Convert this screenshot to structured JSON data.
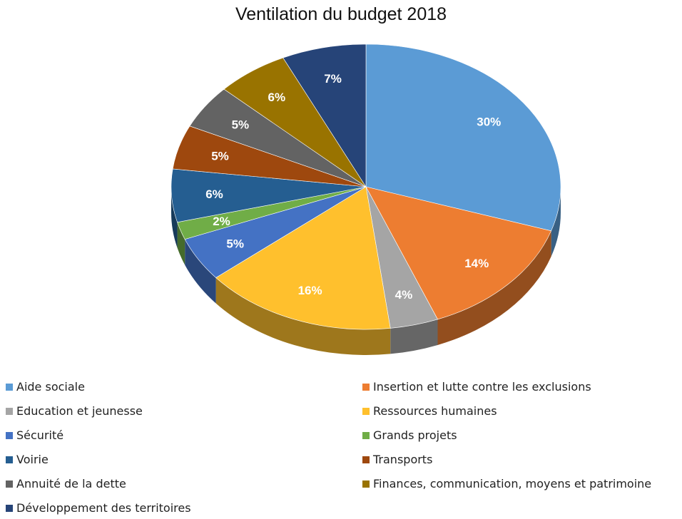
{
  "chart_data": {
    "type": "pie",
    "title": "Ventilation du budget 2018",
    "legend_position": "bottom",
    "slices": [
      {
        "label": "Aide sociale",
        "value": 30,
        "display": "30%",
        "color": "#5B9BD5"
      },
      {
        "label": "Insertion et lutte contre les exclusions",
        "value": 14,
        "display": "14%",
        "color": "#ED7D31"
      },
      {
        "label": "Education et jeunesse",
        "value": 4,
        "display": "4%",
        "color": "#A5A5A5"
      },
      {
        "label": "Ressources humaines",
        "value": 16,
        "display": "16%",
        "color": "#FFC02D"
      },
      {
        "label": "Sécurité",
        "value": 5,
        "display": "5%",
        "color": "#4472C4"
      },
      {
        "label": "Grands projets",
        "value": 2,
        "display": "2%",
        "color": "#70AD47"
      },
      {
        "label": "Voirie",
        "value": 6,
        "display": "6%",
        "color": "#255E91"
      },
      {
        "label": "Transports",
        "value": 5,
        "display": "5%",
        "color": "#9E480E"
      },
      {
        "label": "Annuité de la dette",
        "value": 5,
        "display": "5%",
        "color": "#636363"
      },
      {
        "label": "Finances, communication, moyens et patrimoine",
        "value": 6,
        "display": "6%",
        "color": "#997300"
      },
      {
        "label": "Développement des territoires",
        "value": 7,
        "display": "7%",
        "color": "#264478"
      }
    ]
  }
}
